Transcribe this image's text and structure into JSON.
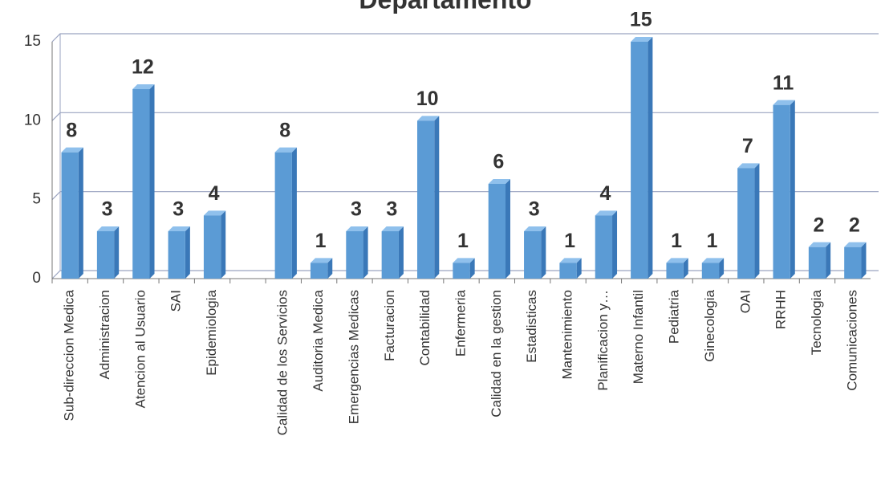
{
  "chart_data": {
    "type": "bar",
    "title": "Departamento",
    "categories": [
      "Sub-direccion Medica",
      "Administracion",
      "Atencion al Usuario",
      "SAI",
      "Epidemiologia",
      null,
      "Calidad de los Servicios",
      "Auditoria Medica",
      "Emergencias Medicas",
      "Facturacion",
      "Contabilidad",
      "Enfermeria",
      "Calidad en la gestion",
      "Estadisticas",
      "Mantenimiento",
      "Planificacion y…",
      "Materno Infantil",
      "Pediatria",
      "Ginecologia",
      "OAI",
      "RRHH",
      "Tecnologia",
      "Comunicaciones"
    ],
    "values": [
      8,
      3,
      12,
      3,
      4,
      null,
      8,
      1,
      3,
      3,
      10,
      1,
      6,
      3,
      1,
      4,
      15,
      1,
      1,
      7,
      11,
      2,
      2
    ],
    "color": "#5b9bd5",
    "ylim": [
      0,
      15
    ],
    "yticks": [
      0,
      5,
      10,
      15
    ],
    "grid": true
  }
}
